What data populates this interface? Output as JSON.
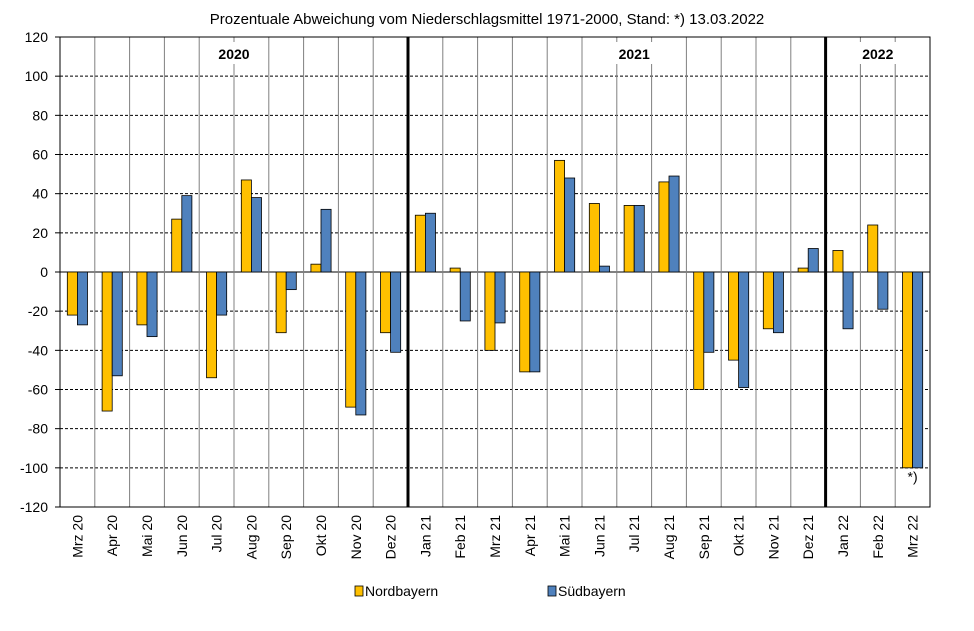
{
  "chart_data": {
    "type": "bar",
    "title": "Prozentuale Abweichung vom Niederschlagsmittel 1971-2000, Stand: *) 13.03.2022",
    "categories": [
      "Mrz 20",
      "Apr 20",
      "Mai 20",
      "Jun 20",
      "Jul 20",
      "Aug 20",
      "Sep 20",
      "Okt 20",
      "Nov 20",
      "Dez 20",
      "Jan 21",
      "Feb 21",
      "Mrz 21",
      "Apr 21",
      "Mai 21",
      "Jun 21",
      "Jul 21",
      "Aug 21",
      "Sep 21",
      "Okt 21",
      "Nov 21",
      "Dez 21",
      "Jan 22",
      "Feb 22",
      "Mrz 22"
    ],
    "series": [
      {
        "name": "Nordbayern",
        "color": "#FFC000",
        "values": [
          -22,
          -71,
          -27,
          27,
          -54,
          47,
          -31,
          4,
          -69,
          -31,
          29,
          2,
          -40,
          -51,
          57,
          35,
          34,
          46,
          -60,
          -45,
          -29,
          2,
          11,
          24,
          -100
        ]
      },
      {
        "name": "Südbayern",
        "color": "#4F81BD",
        "values": [
          -27,
          -53,
          -33,
          39,
          -22,
          38,
          -9,
          32,
          -73,
          -41,
          30,
          -25,
          -26,
          -51,
          48,
          3,
          34,
          49,
          -41,
          -59,
          -31,
          12,
          -29,
          -19,
          -100
        ]
      }
    ],
    "ylim": [
      -120,
      120
    ],
    "yticks": [
      -120,
      -100,
      -80,
      -60,
      -40,
      -20,
      0,
      20,
      40,
      60,
      80,
      100,
      120
    ],
    "xlabel": "",
    "ylabel": "",
    "grid": true,
    "legend_position": "bottom",
    "year_labels": [
      {
        "text": "2020",
        "category_index": 4.5
      },
      {
        "text": "2021",
        "category_index": 16
      },
      {
        "text": "2022",
        "category_index": 23
      }
    ],
    "year_dividers_after": [
      9,
      21
    ],
    "annotations": [
      {
        "text": "*)",
        "category_index": 24
      }
    ]
  }
}
